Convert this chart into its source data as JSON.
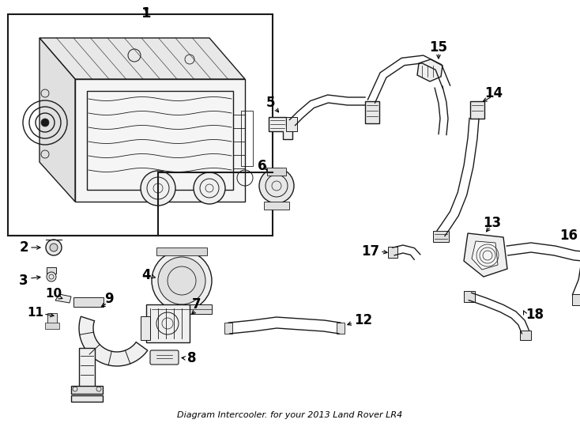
{
  "title": "Diagram Intercooler. for your 2013 Land Rover LR4",
  "background_color": "#ffffff",
  "line_color": "#1a1a1a",
  "fig_width": 7.34,
  "fig_height": 5.4,
  "dpi": 100
}
